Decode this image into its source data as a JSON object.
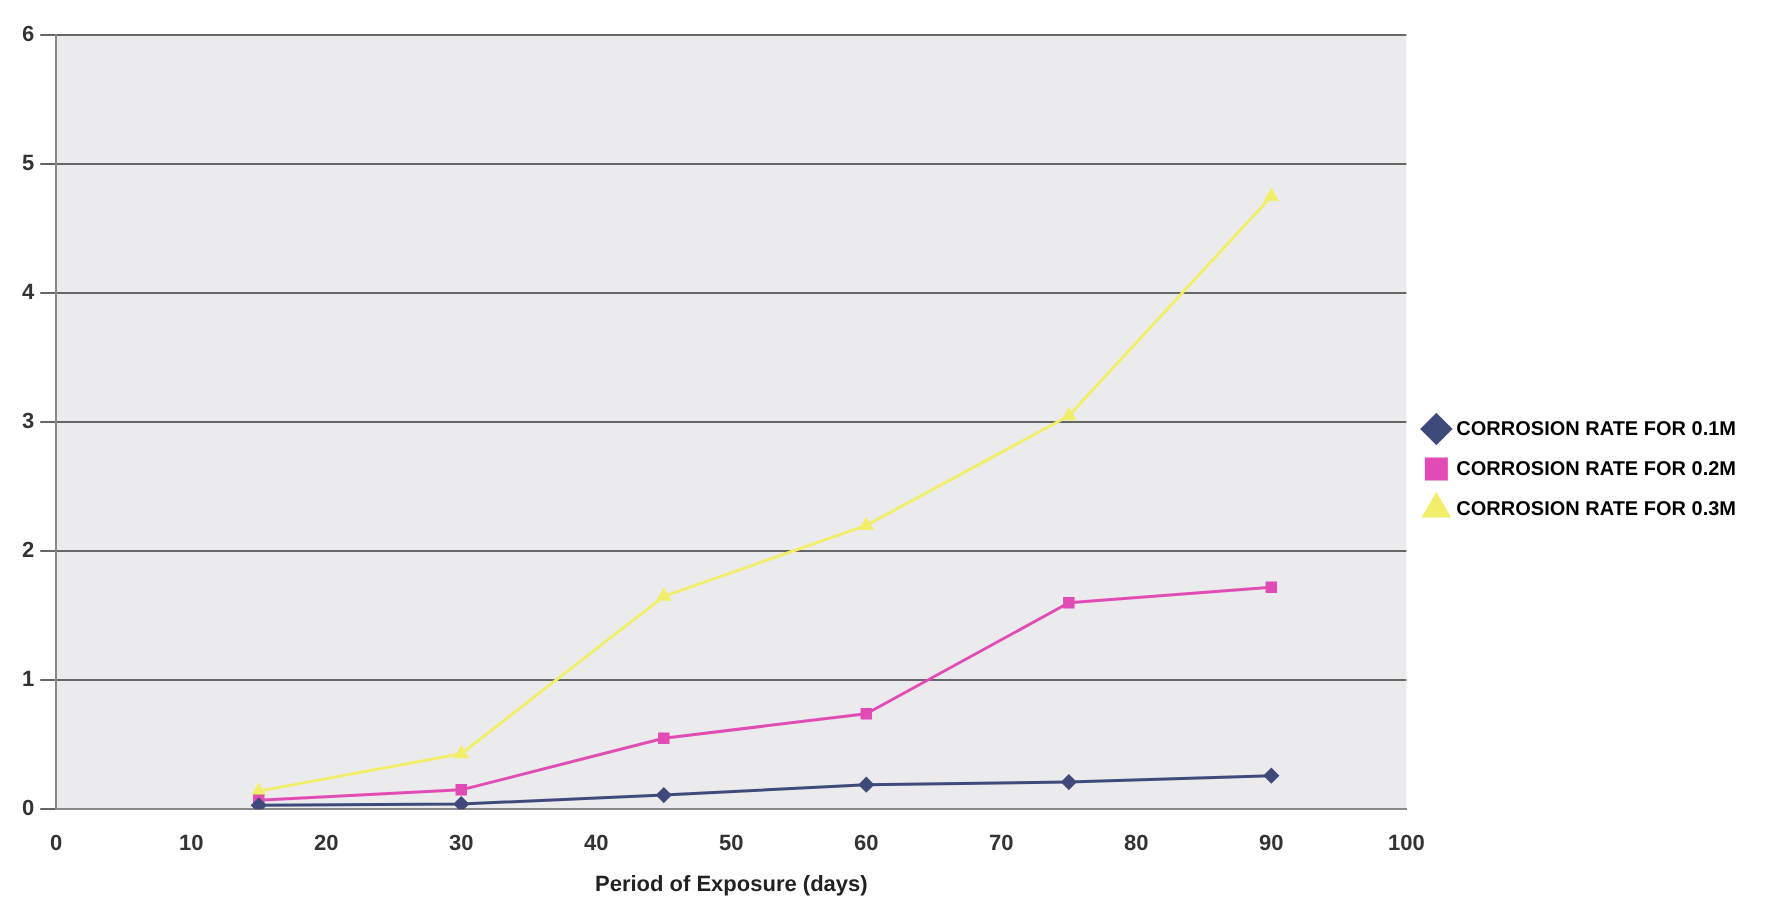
{
  "chart_data": {
    "type": "line",
    "xlabel": "Period of Exposure (days)",
    "xlim": [
      0,
      100
    ],
    "xticks": [
      0,
      10,
      20,
      30,
      40,
      50,
      60,
      70,
      80,
      90,
      100
    ],
    "ylim": [
      0,
      6
    ],
    "yticks": [
      0,
      1,
      2,
      3,
      4,
      5,
      6
    ],
    "grid": "y",
    "legend": "right",
    "series": [
      {
        "name": "CORROSION RATE FOR 0.1M",
        "color": "#3f4a7a",
        "marker": "diamond",
        "x": [
          15,
          30,
          45,
          60,
          75,
          90
        ],
        "values": [
          0.03,
          0.04,
          0.11,
          0.19,
          0.21,
          0.26
        ]
      },
      {
        "name": "CORROSION RATE FOR 0.2M",
        "color": "#e04cb4",
        "marker": "square",
        "x": [
          15,
          30,
          45,
          60,
          75,
          90
        ],
        "values": [
          0.07,
          0.15,
          0.55,
          0.74,
          1.6,
          1.72
        ]
      },
      {
        "name": "CORROSION RATE FOR 0.3M",
        "color": "#f2ee6a",
        "marker": "triangle",
        "x": [
          15,
          30,
          45,
          60,
          75,
          90
        ],
        "values": [
          0.14,
          0.43,
          1.65,
          2.2,
          3.05,
          4.75
        ]
      }
    ]
  }
}
